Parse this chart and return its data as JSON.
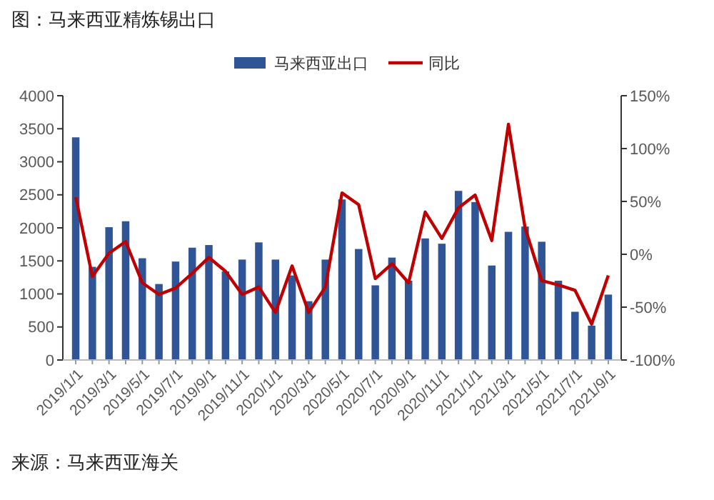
{
  "chart_data": {
    "type": "bar",
    "title": "图：马来西亚精炼锡出口",
    "categories": [
      "2019/1/1",
      null,
      "2019/3/1",
      null,
      "2019/5/1",
      null,
      "2019/7/1",
      null,
      "2019/9/1",
      null,
      "2019/11/1",
      null,
      "2020/1/1",
      null,
      "2020/3/1",
      null,
      "2020/5/1",
      null,
      "2020/7/1",
      null,
      "2020/9/1",
      null,
      "2020/11/1",
      null,
      "2021/1/1",
      null,
      "2021/3/1",
      null,
      "2021/5/1",
      null,
      "2021/7/1",
      null,
      "2021/9/1"
    ],
    "series": [
      {
        "name": "马来西亚出口",
        "color": "#2f5597",
        "values": [
          3370,
          1410,
          2010,
          2100,
          1540,
          1150,
          1490,
          1700,
          1740,
          1340,
          1520,
          1780,
          1520,
          1280,
          890,
          1520,
          2430,
          1680,
          1130,
          1550,
          1200,
          1840,
          1760,
          2560,
          2390,
          1430,
          1940,
          2020,
          1790,
          1200,
          730,
          520,
          990
        ]
      },
      {
        "name": "同比",
        "type": "line",
        "axis": "y2",
        "color": "#c00000",
        "marker": "none",
        "line_style": "solid",
        "values": [
          54,
          -21,
          1,
          12,
          -27,
          -38,
          -32,
          -18,
          -3,
          -16,
          -38,
          -31,
          -55,
          -11,
          -55,
          -31,
          58,
          47,
          -23,
          -9,
          -27,
          40,
          15,
          44,
          56,
          13,
          123,
          25,
          -25,
          -29,
          -34,
          -66,
          -20
        ]
      }
    ],
    "ylim": [
      0,
      4000
    ],
    "yticks": [
      0,
      500,
      1000,
      1500,
      2000,
      2500,
      3000,
      3500,
      4000
    ],
    "y2lim": [
      -100,
      150
    ],
    "y2ticks": [
      {
        "value": -100,
        "label": "-100%"
      },
      {
        "value": -50,
        "label": "-50%"
      },
      {
        "value": 0,
        "label": "0%"
      },
      {
        "value": 50,
        "label": "50%"
      },
      {
        "value": 100,
        "label": "100%"
      },
      {
        "value": 150,
        "label": "150%"
      }
    ],
    "grid": false,
    "legend": "top",
    "annotations": [
      "来源：马来西亚海关"
    ]
  }
}
